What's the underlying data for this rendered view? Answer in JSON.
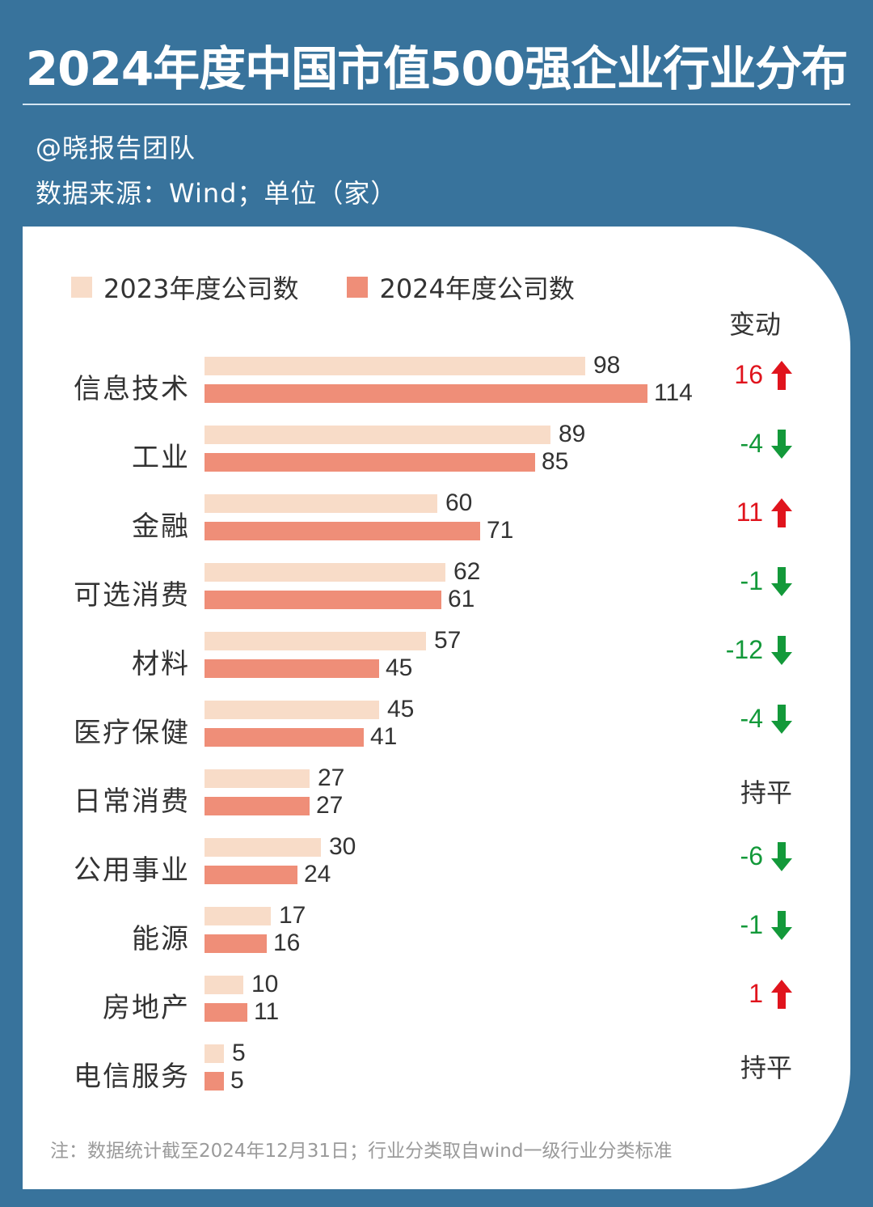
{
  "header": {
    "title": "2024年度中国市值500强企业行业分布",
    "author": "@晓报告团队",
    "source": "数据来源：Wind；单位（家）"
  },
  "legend": {
    "items": [
      {
        "label": "2023年度公司数",
        "color": "#f8dcc8"
      },
      {
        "label": "2024年度公司数",
        "color": "#ef8e78"
      }
    ]
  },
  "change_header": "变动",
  "colors": {
    "up": "#e0141d",
    "down": "#13993a",
    "flat": "#333333",
    "background": "#38739c"
  },
  "rows": [
    {
      "category": "信息技术",
      "v2023": "98",
      "v2024": "114",
      "change": "16",
      "dir": "up"
    },
    {
      "category": "工业",
      "v2023": "89",
      "v2024": "85",
      "change": "-4",
      "dir": "down"
    },
    {
      "category": "金融",
      "v2023": "60",
      "v2024": "71",
      "change": "11",
      "dir": "up"
    },
    {
      "category": "可选消费",
      "v2023": "62",
      "v2024": "61",
      "change": "-1",
      "dir": "down"
    },
    {
      "category": "材料",
      "v2023": "57",
      "v2024": "45",
      "change": "-12",
      "dir": "down"
    },
    {
      "category": "医疗保健",
      "v2023": "45",
      "v2024": "41",
      "change": "-4",
      "dir": "down"
    },
    {
      "category": "日常消费",
      "v2023": "27",
      "v2024": "27",
      "change": "持平",
      "dir": "flat"
    },
    {
      "category": "公用事业",
      "v2023": "30",
      "v2024": "24",
      "change": "-6",
      "dir": "down"
    },
    {
      "category": "能源",
      "v2023": "17",
      "v2024": "16",
      "change": "-1",
      "dir": "down"
    },
    {
      "category": "房地产",
      "v2023": "10",
      "v2024": "11",
      "change": "1",
      "dir": "up"
    },
    {
      "category": "电信服务",
      "v2023": "5",
      "v2024": "5",
      "change": "持平",
      "dir": "flat"
    }
  ],
  "footnote": "注：数据统计截至2024年12月31日；行业分类取自wind一级行业分类标准",
  "chart_data": {
    "type": "bar",
    "orientation": "horizontal",
    "title": "2024年度中国市值500强企业行业分布",
    "subtitle": "数据来源：Wind；单位（家）",
    "categories": [
      "信息技术",
      "工业",
      "金融",
      "可选消费",
      "材料",
      "医疗保健",
      "日常消费",
      "公用事业",
      "能源",
      "房地产",
      "电信服务"
    ],
    "series": [
      {
        "name": "2023年度公司数",
        "color": "#f8dcc8",
        "values": [
          98,
          89,
          60,
          62,
          57,
          45,
          27,
          30,
          17,
          10,
          5
        ]
      },
      {
        "name": "2024年度公司数",
        "color": "#ef8e78",
        "values": [
          114,
          85,
          71,
          61,
          45,
          41,
          27,
          24,
          16,
          11,
          5
        ]
      }
    ],
    "change": [
      16,
      -4,
      11,
      -1,
      -12,
      -4,
      0,
      -6,
      -1,
      1,
      0
    ],
    "change_labels": [
      "16",
      "-4",
      "11",
      "-1",
      "-12",
      "-4",
      "持平",
      "-6",
      "-1",
      "1",
      "持平"
    ],
    "xlabel": "",
    "ylabel": "",
    "unit": "家",
    "legend_position": "top",
    "grid": false,
    "annotation": "注：数据统计截至2024年12月31日；行业分类取自wind一级行业分类标准"
  }
}
